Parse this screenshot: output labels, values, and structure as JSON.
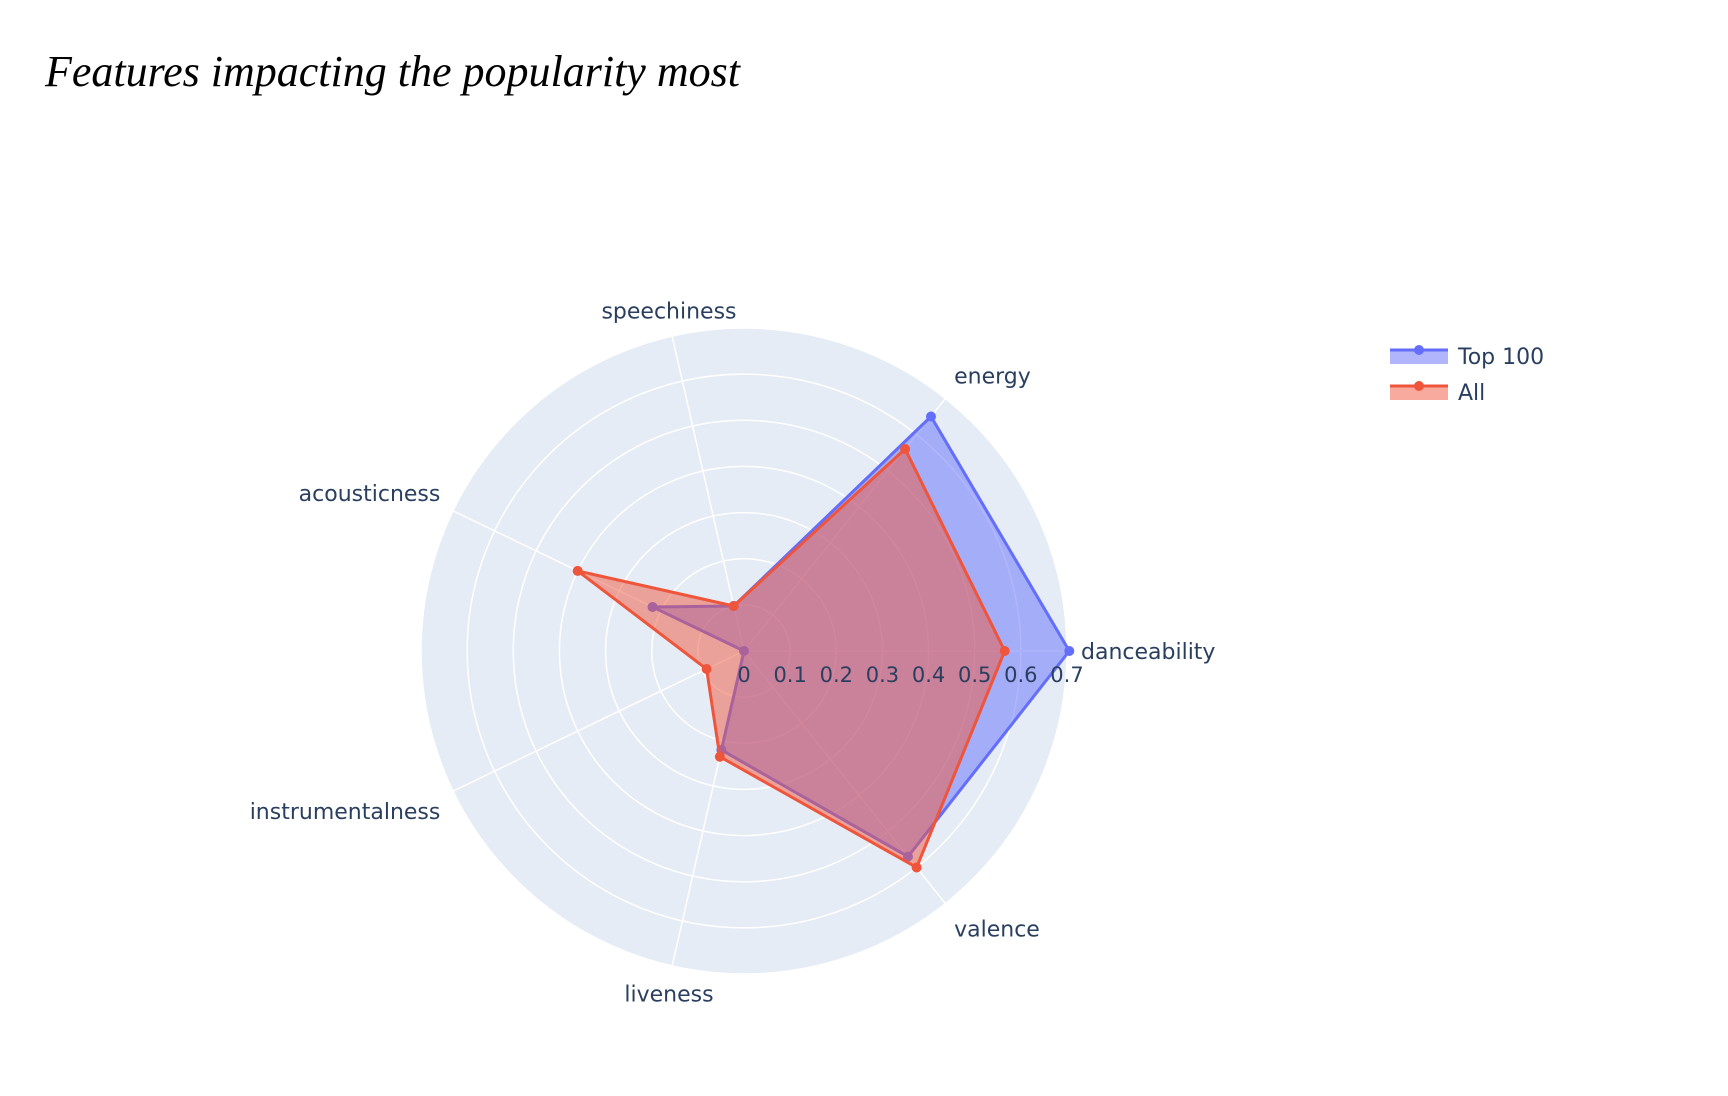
{
  "chart_data": {
    "type": "radar",
    "title": "Features impacting the popularity most",
    "categories": [
      "danceability",
      "energy",
      "speechiness",
      "acousticness",
      "instrumentalness",
      "liveness",
      "valence"
    ],
    "radial_range": [
      0,
      0.7
    ],
    "radial_ticks": [
      "0",
      "0.1",
      "0.2",
      "0.3",
      "0.4",
      "0.5",
      "0.6",
      "0.7"
    ],
    "grid": true,
    "legend_position": "top-right",
    "series": [
      {
        "name": "Top 100",
        "color": "#636efa",
        "values": [
          0.705,
          0.65,
          0.1,
          0.22,
          0.0,
          0.22,
          0.57
        ]
      },
      {
        "name": "All",
        "color": "#ef553b",
        "values": [
          0.565,
          0.56,
          0.1,
          0.4,
          0.09,
          0.235,
          0.6
        ]
      }
    ]
  },
  "colors": {
    "polar_background": "#e5ecf6",
    "grid": "#ffffff",
    "text": "#2a3f5f"
  }
}
